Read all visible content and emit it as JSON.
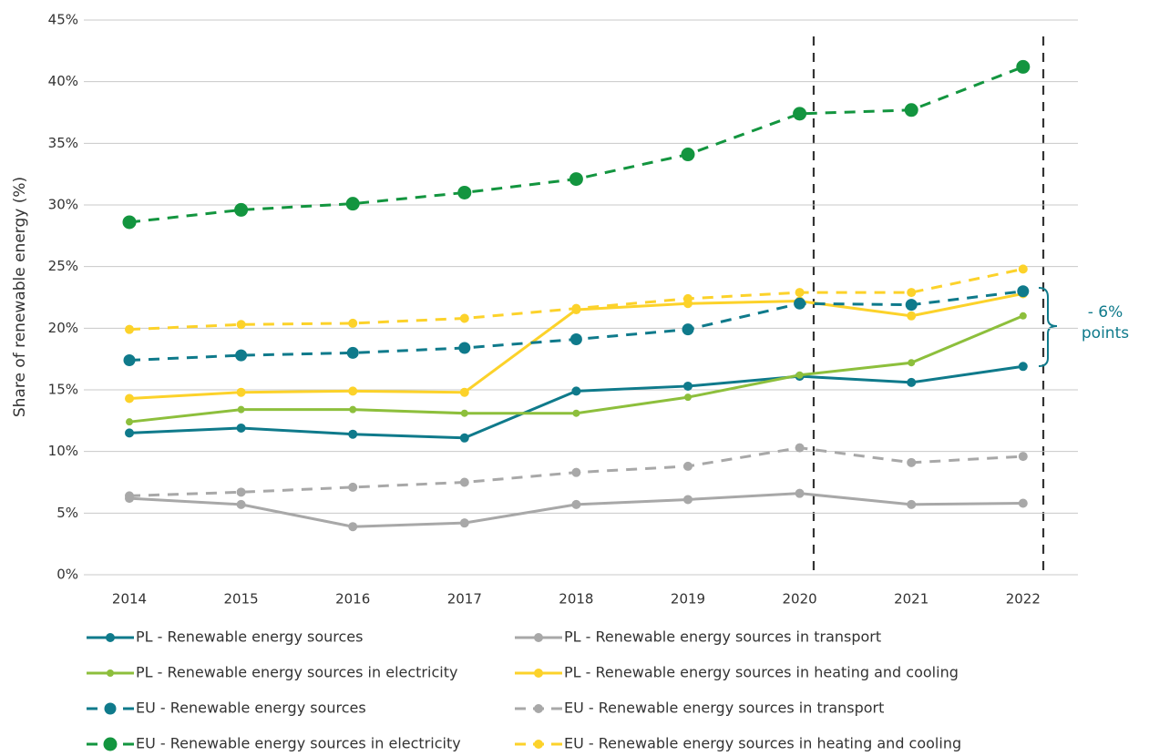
{
  "chart_data": {
    "type": "line",
    "y_label": "Share of renewable energy (%)",
    "categories": [
      "2014",
      "2015",
      "2016",
      "2017",
      "2018",
      "2019",
      "2020",
      "2021",
      "2022"
    ],
    "ylim": [
      0,
      45
    ],
    "yticks": [
      {
        "value": 0,
        "label": "0%"
      },
      {
        "value": 5,
        "label": "5%"
      },
      {
        "value": 10,
        "label": "10%"
      },
      {
        "value": 15,
        "label": "15%"
      },
      {
        "value": 20,
        "label": "20%"
      },
      {
        "value": 25,
        "label": "25%"
      },
      {
        "value": 30,
        "label": "30%"
      },
      {
        "value": 35,
        "label": "35%"
      },
      {
        "value": 40,
        "label": "40%"
      },
      {
        "value": 45,
        "label": "45%"
      }
    ],
    "grid": true,
    "series": [
      {
        "name": "PL - Renewable energy sources",
        "color": "#0f7a8b",
        "dashed": false,
        "marker_size": 5,
        "values": [
          11.5,
          11.9,
          11.4,
          11.1,
          14.9,
          15.3,
          16.1,
          15.6,
          16.9
        ]
      },
      {
        "name": "PL - Renewable energy sources in transport",
        "color": "#a8a8a8",
        "dashed": false,
        "marker_size": 5,
        "values": [
          6.2,
          5.7,
          3.9,
          4.2,
          5.7,
          6.1,
          6.6,
          5.7,
          5.8
        ]
      },
      {
        "name": "PL - Renewable energy sources in electricity",
        "color": "#8dbf3c",
        "dashed": false,
        "marker_size": 4,
        "values": [
          12.4,
          13.4,
          13.4,
          13.1,
          13.1,
          14.4,
          16.2,
          17.2,
          21.0
        ]
      },
      {
        "name": "PL - Renewable energy sources in heating and cooling",
        "color": "#fcd22a",
        "dashed": false,
        "marker_size": 5,
        "values": [
          14.3,
          14.8,
          14.9,
          14.8,
          21.5,
          22.0,
          22.2,
          21.0,
          22.8
        ]
      },
      {
        "name": "EU - Renewable energy sources",
        "color": "#0f7a8b",
        "dashed": true,
        "marker_size": 6.5,
        "values": [
          17.4,
          17.8,
          18.0,
          18.4,
          19.1,
          19.9,
          22.0,
          21.9,
          23.0
        ]
      },
      {
        "name": "EU - Renewable energy sources in transport",
        "color": "#a8a8a8",
        "dashed": true,
        "marker_size": 5,
        "values": [
          6.4,
          6.7,
          7.1,
          7.5,
          8.3,
          8.8,
          10.3,
          9.1,
          9.6
        ]
      },
      {
        "name": "EU - Renewable energy sources in electricity",
        "color": "#13953f",
        "dashed": true,
        "marker_size": 7.5,
        "values": [
          28.6,
          29.6,
          30.1,
          31.0,
          32.1,
          34.1,
          37.4,
          37.7,
          41.2
        ]
      },
      {
        "name": "EU - Renewable energy sources in heating and cooling",
        "color": "#fcd22a",
        "dashed": true,
        "marker_size": 5,
        "values": [
          19.9,
          20.3,
          20.4,
          20.8,
          21.6,
          22.4,
          22.9,
          22.9,
          24.8
        ]
      }
    ],
    "annotation": [
      "- 6%",
      "points"
    ]
  }
}
